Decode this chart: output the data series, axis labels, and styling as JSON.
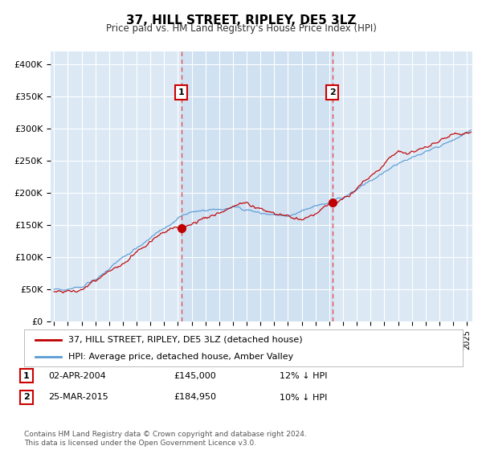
{
  "title": "37, HILL STREET, RIPLEY, DE5 3LZ",
  "subtitle": "Price paid vs. HM Land Registry's House Price Index (HPI)",
  "ylim": [
    0,
    420000
  ],
  "yticks": [
    0,
    50000,
    100000,
    150000,
    200000,
    250000,
    300000,
    350000,
    400000
  ],
  "ytick_labels": [
    "£0",
    "£50K",
    "£100K",
    "£150K",
    "£200K",
    "£250K",
    "£300K",
    "£350K",
    "£400K"
  ],
  "xlim_start": 1994.75,
  "xlim_end": 2025.4,
  "background_color": "#dce9f5",
  "shade_color": "#c8ddf0",
  "hpi_color": "#5b9bd5",
  "price_color": "#c00000",
  "vline_color": "#e05050",
  "marker1_x": 2004.25,
  "marker1_y": 145000,
  "marker1_label": "1",
  "marker2_x": 2015.22,
  "marker2_y": 184950,
  "marker2_label": "2",
  "sale1_date": "02-APR-2004",
  "sale1_price": "£145,000",
  "sale1_note": "12% ↓ HPI",
  "sale2_date": "25-MAR-2015",
  "sale2_price": "£184,950",
  "sale2_note": "10% ↓ HPI",
  "legend_line1": "37, HILL STREET, RIPLEY, DE5 3LZ (detached house)",
  "legend_line2": "HPI: Average price, detached house, Amber Valley",
  "footer": "Contains HM Land Registry data © Crown copyright and database right 2024.\nThis data is licensed under the Open Government Licence v3.0."
}
